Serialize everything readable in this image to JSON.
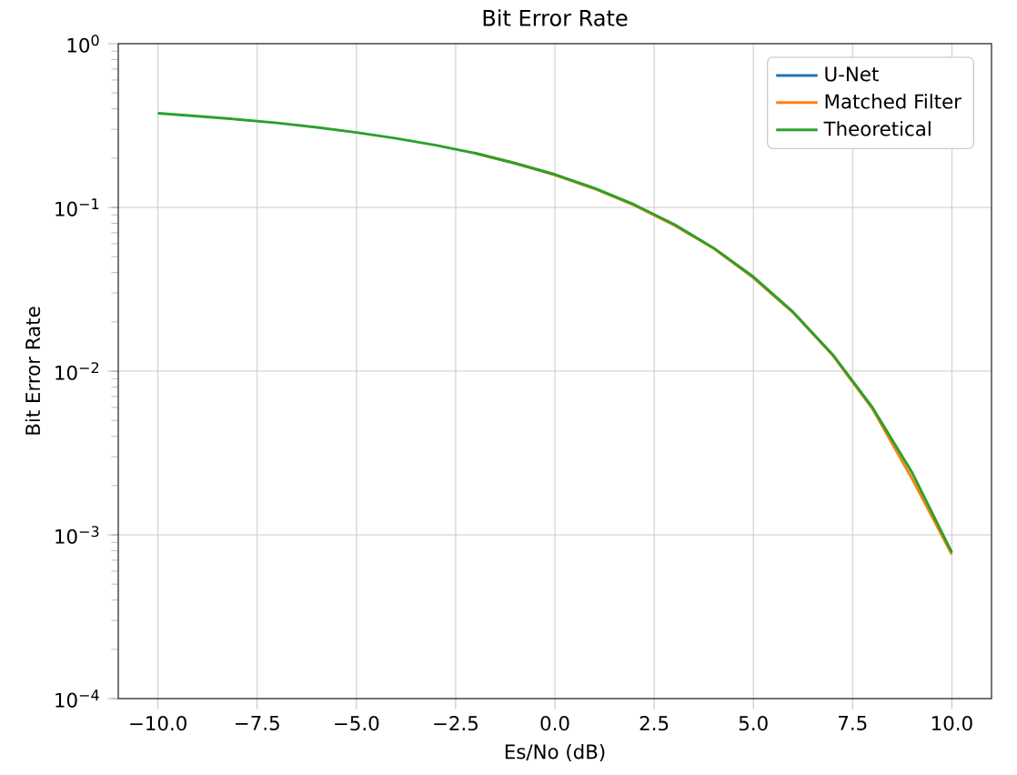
{
  "chart_data": {
    "type": "line",
    "title": "Bit Error Rate",
    "xlabel": "Es/No (dB)",
    "ylabel": "Bit Error Rate",
    "x": [
      -10,
      -9,
      -8,
      -7,
      -6,
      -5,
      -4,
      -3,
      -2,
      -1,
      0,
      1,
      2,
      3,
      4,
      5,
      6,
      7,
      8,
      9,
      10
    ],
    "series": [
      {
        "name": "U-Net",
        "color": "#1f77b4",
        "values": [
          null,
          null,
          null,
          null,
          null,
          null,
          null,
          null,
          null,
          null,
          null,
          null,
          null,
          null,
          null,
          null,
          null,
          null,
          null,
          null,
          null
        ]
      },
      {
        "name": "Matched Filter",
        "color": "#ff7f0e",
        "values": [
          null,
          null,
          null,
          null,
          null,
          null,
          null,
          null,
          0.214,
          0.186,
          0.158,
          0.13,
          0.103,
          0.078,
          0.0562,
          0.0372,
          0.0228,
          0.0125,
          0.0059,
          0.0022,
          0.00076
        ]
      },
      {
        "name": "Theoretical",
        "color": "#2ca02c",
        "values": [
          0.376,
          0.361,
          0.345,
          0.328,
          0.308,
          0.287,
          0.264,
          0.24,
          0.214,
          0.186,
          0.159,
          0.131,
          0.104,
          0.079,
          0.0565,
          0.0377,
          0.023,
          0.0126,
          0.006,
          0.0024,
          0.00078
        ]
      }
    ],
    "xlim": [
      -11,
      11
    ],
    "xticks": [
      {
        "value": -10,
        "label": "−10.0"
      },
      {
        "value": -7.5,
        "label": "−7.5"
      },
      {
        "value": -5,
        "label": "−5.0"
      },
      {
        "value": -2.5,
        "label": "−2.5"
      },
      {
        "value": 0,
        "label": "0.0"
      },
      {
        "value": 2.5,
        "label": "2.5"
      },
      {
        "value": 5,
        "label": "5.0"
      },
      {
        "value": 7.5,
        "label": "7.5"
      },
      {
        "value": 10,
        "label": "10.0"
      }
    ],
    "ylim": [
      0.0001,
      1
    ],
    "yticks": [
      {
        "value": 0.0001,
        "label": "10$^{−4}$"
      },
      {
        "value": 0.001,
        "label": "10$^{−3}$"
      },
      {
        "value": 0.01,
        "label": "10$^{−2}$"
      },
      {
        "value": 0.1,
        "label": "10$^{−1}$"
      },
      {
        "value": 1,
        "label": "10$^{0}$"
      }
    ],
    "log": true,
    "grid": true,
    "legend": "top right"
  }
}
